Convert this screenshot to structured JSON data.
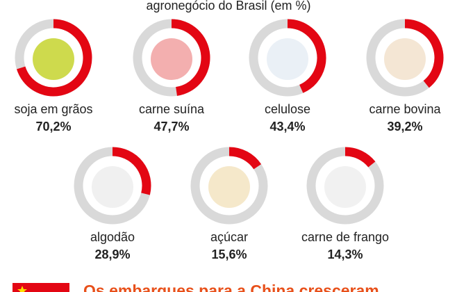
{
  "chart_data": {
    "type": "donut",
    "subtitle": "agronegócio do Brasil (em %)",
    "categories": [
      "soja em grãos",
      "carne suína",
      "celulose",
      "carne bovina",
      "algodão",
      "açúcar",
      "carne de frango"
    ],
    "values": [
      70.2,
      47.7,
      43.4,
      39.2,
      28.9,
      15.6,
      14.3
    ],
    "value_labels": [
      "70,2%",
      "47,7%",
      "43,4%",
      "39,2%",
      "28,9%",
      "15,6%",
      "14,3%"
    ],
    "ylim": [
      0,
      100
    ],
    "color": "#e30613",
    "track_color": "#d9d9d9",
    "footer": "Os embarques para a China cresceram"
  }
}
